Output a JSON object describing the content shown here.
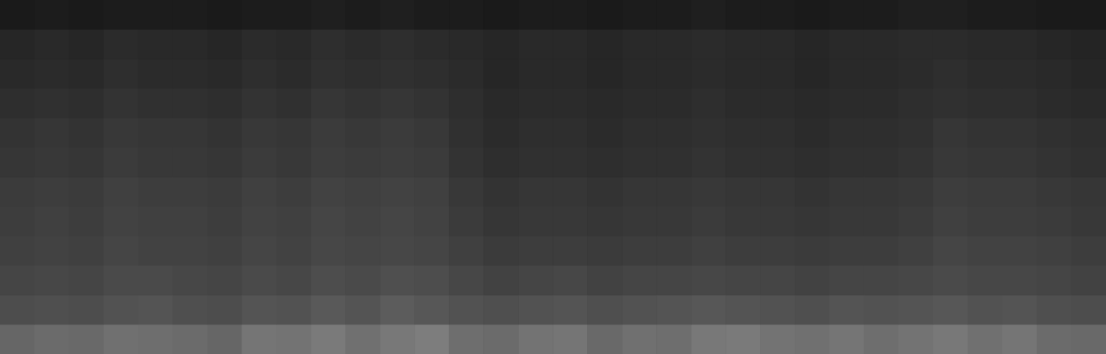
{
  "chart_data": {
    "type": "heatmap",
    "tick_labels": false,
    "grid": false,
    "color": "#ffffff",
    "value_range": [
      0,
      100
    ],
    "x": [
      0,
      1,
      2,
      3,
      4,
      5,
      6,
      7,
      8,
      9,
      10,
      11,
      12,
      13,
      14,
      15,
      16,
      17,
      18,
      19,
      20,
      21,
      22,
      23,
      24,
      25,
      26,
      27,
      28,
      29,
      30,
      31
    ],
    "y": [
      0,
      1,
      2,
      3,
      4,
      5,
      6,
      7,
      8,
      9,
      10,
      11
    ],
    "cells": [
      [
        40,
        42,
        41,
        44,
        43,
        42,
        40,
        46,
        45,
        48,
        44,
        47,
        49,
        43,
        42,
        45,
        46,
        41,
        44,
        43,
        47,
        48,
        45,
        44,
        46,
        43,
        45,
        47,
        44,
        46,
        42,
        41
      ],
      [
        30,
        31,
        30,
        32,
        33,
        31,
        30,
        33,
        32,
        35,
        33,
        36,
        34,
        32,
        31,
        32,
        33,
        31,
        32,
        33,
        34,
        33,
        32,
        31,
        33,
        32,
        33,
        34,
        32,
        33,
        31,
        30
      ],
      [
        27,
        28,
        27,
        29,
        29,
        28,
        27,
        29,
        28,
        30,
        29,
        31,
        30,
        28,
        26,
        27,
        28,
        26,
        27,
        27,
        28,
        27,
        27,
        26,
        27,
        27,
        28,
        29,
        28,
        28,
        27,
        26
      ],
      [
        25,
        26,
        25,
        27,
        26,
        26,
        25,
        27,
        26,
        28,
        27,
        28,
        27,
        25,
        23,
        24,
        24,
        23,
        24,
        24,
        25,
        24,
        24,
        23,
        24,
        24,
        25,
        27,
        26,
        26,
        25,
        24
      ],
      [
        24,
        25,
        24,
        26,
        25,
        25,
        24,
        26,
        25,
        27,
        26,
        27,
        26,
        23,
        21,
        22,
        22,
        21,
        22,
        22,
        23,
        22,
        22,
        21,
        22,
        22,
        23,
        25,
        24,
        24,
        23,
        22
      ],
      [
        23,
        24,
        23,
        25,
        24,
        24,
        23,
        25,
        24,
        26,
        25,
        26,
        25,
        22,
        20,
        21,
        21,
        20,
        21,
        21,
        22,
        21,
        21,
        20,
        21,
        21,
        22,
        24,
        23,
        23,
        22,
        21
      ],
      [
        21,
        22,
        21,
        23,
        22,
        22,
        21,
        23,
        22,
        24,
        23,
        24,
        23,
        20,
        18,
        19,
        19,
        18,
        19,
        19,
        20,
        19,
        19,
        18,
        19,
        19,
        20,
        22,
        21,
        21,
        20,
        19
      ],
      [
        20,
        21,
        20,
        22,
        21,
        21,
        20,
        22,
        21,
        23,
        22,
        23,
        22,
        19,
        17,
        18,
        18,
        17,
        18,
        18,
        19,
        18,
        18,
        17,
        18,
        18,
        19,
        21,
        20,
        20,
        19,
        18
      ],
      [
        18,
        19,
        18,
        20,
        19,
        19,
        18,
        20,
        19,
        21,
        20,
        21,
        20,
        18,
        16,
        17,
        17,
        16,
        17,
        17,
        18,
        17,
        17,
        16,
        17,
        17,
        18,
        19,
        18,
        18,
        17,
        16
      ],
      [
        16,
        17,
        16,
        18,
        17,
        17,
        16,
        18,
        17,
        19,
        18,
        19,
        18,
        17,
        15,
        16,
        16,
        15,
        16,
        16,
        17,
        16,
        16,
        15,
        16,
        16,
        17,
        18,
        17,
        17,
        16,
        15
      ],
      [
        15,
        16,
        15,
        17,
        16,
        16,
        15,
        17,
        16,
        18,
        17,
        18,
        17,
        16,
        15,
        16,
        16,
        15,
        16,
        16,
        17,
        16,
        16,
        15,
        16,
        16,
        17,
        17,
        16,
        16,
        15,
        14
      ],
      [
        10,
        11,
        10,
        11,
        11,
        11,
        10,
        11,
        11,
        12,
        11,
        12,
        11,
        11,
        10,
        11,
        11,
        10,
        11,
        11,
        12,
        11,
        11,
        10,
        11,
        11,
        12,
        12,
        11,
        11,
        10,
        10
      ]
    ]
  }
}
